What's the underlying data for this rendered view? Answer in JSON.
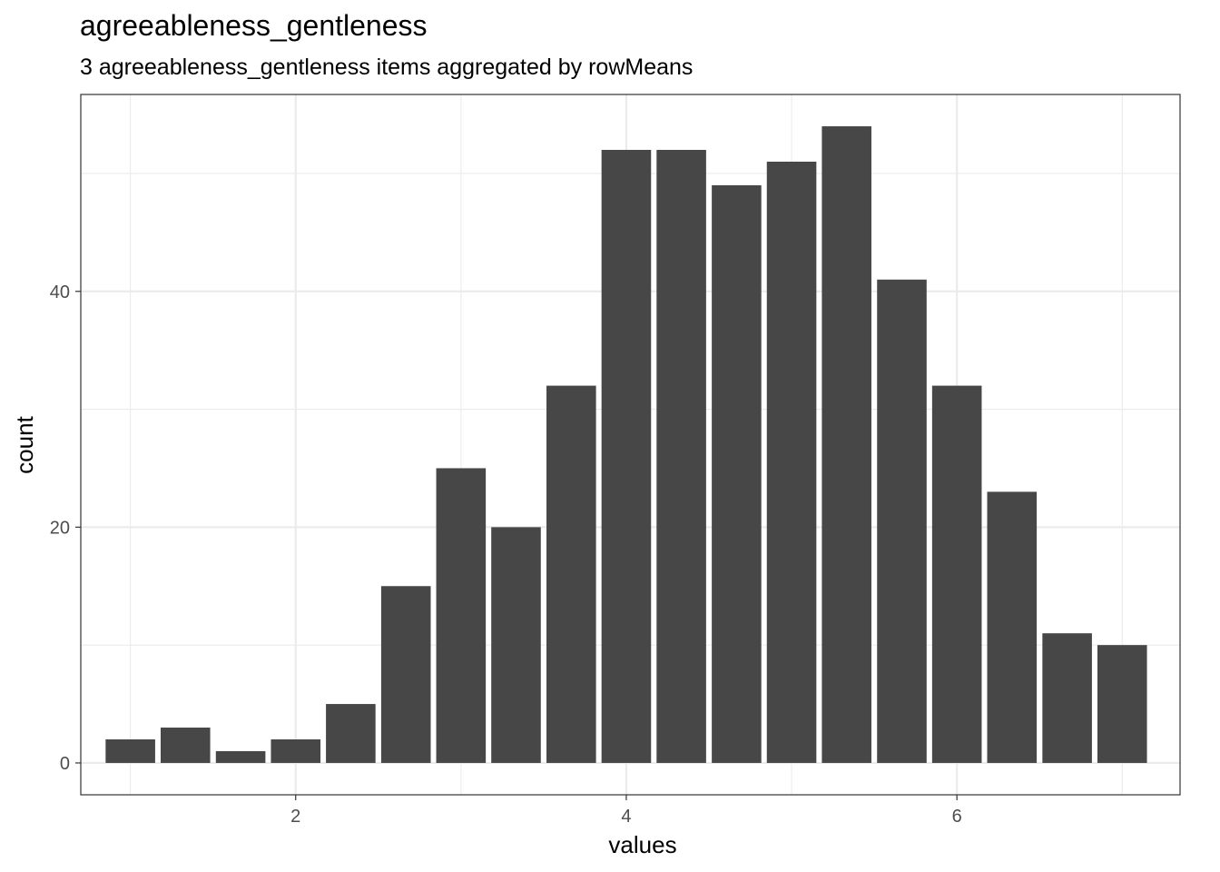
{
  "chart_data": {
    "type": "bar",
    "title": "agreeableness_gentleness",
    "subtitle": "3 agreeableness_gentleness items aggregated by rowMeans",
    "xlabel": "values",
    "ylabel": "count",
    "x": [
      1.0,
      1.333,
      1.667,
      2.0,
      2.333,
      2.667,
      3.0,
      3.333,
      3.667,
      4.0,
      4.333,
      4.667,
      5.0,
      5.333,
      5.667,
      6.0,
      6.333,
      6.667,
      7.0
    ],
    "values": [
      2,
      3,
      1,
      2,
      5,
      15,
      25,
      20,
      32,
      52,
      52,
      49,
      51,
      54,
      41,
      32,
      23,
      11,
      10
    ],
    "xlim": [
      0.7,
      7.35
    ],
    "ylim": [
      -2.7,
      56.7
    ],
    "x_ticks": [
      "2",
      "4",
      "6"
    ],
    "y_ticks": [
      "0",
      "20",
      "40"
    ],
    "grid": true,
    "colors": {
      "bar": "#474747",
      "grid": "#ebebeb",
      "panel_border": "#333333",
      "tick_label": "#4d4d4d"
    }
  }
}
